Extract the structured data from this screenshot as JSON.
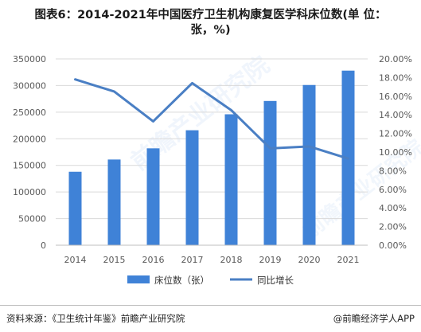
{
  "title_line1": "图表6：2014-2021年中国医疗卫生机构康复医学科床位数(单 位：",
  "title_line2": "张，%)",
  "watermark": "前瞻产业研究院",
  "source": "资料来源：《卫生统计年鉴》前瞻产业研究院",
  "brand": "@前瞻经济学人APP",
  "colors": {
    "bar": "#3f82d7",
    "line": "#4a7fc4",
    "grid": "#d9d9d9"
  },
  "chart_data": {
    "type": "bar",
    "categories": [
      "2014",
      "2015",
      "2016",
      "2017",
      "2018",
      "2019",
      "2020",
      "2021"
    ],
    "series": [
      {
        "name": "床位数（张）",
        "type": "bar",
        "axis": "left",
        "values": [
          138000,
          161000,
          182000,
          216000,
          246000,
          271000,
          301000,
          328000
        ]
      },
      {
        "name": "同比增长",
        "type": "line",
        "axis": "right",
        "values": [
          17.8,
          16.5,
          13.3,
          17.4,
          14.5,
          10.4,
          10.6,
          9.3
        ]
      }
    ],
    "y_left": {
      "min": 0,
      "max": 350000,
      "ticks": [
        "0",
        "50000",
        "100000",
        "150000",
        "200000",
        "250000",
        "300000",
        "350000"
      ]
    },
    "y_right": {
      "min": 0,
      "max": 20,
      "ticks": [
        "0.00%",
        "2.00%",
        "4.00%",
        "6.00%",
        "8.00%",
        "10.00%",
        "12.00%",
        "14.00%",
        "16.00%",
        "18.00%",
        "20.00%"
      ]
    },
    "grid": true,
    "legend": "bottom"
  }
}
